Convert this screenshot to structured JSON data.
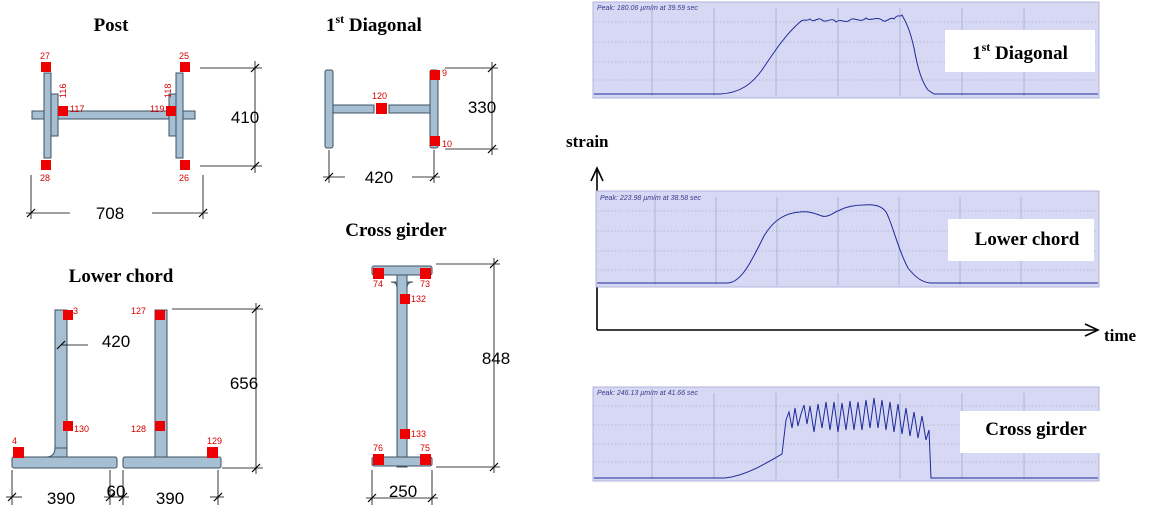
{
  "sections": {
    "post": {
      "title": "Post",
      "gauges": [
        "27",
        "25",
        "116",
        "117",
        "119",
        "118",
        "28",
        "26"
      ],
      "dims": {
        "height": "410",
        "width": "708"
      }
    },
    "diagonal": {
      "title_main": "1",
      "title_sup": "st",
      "title_rest": " Diagonal",
      "gauges": [
        "9",
        "120",
        "10"
      ],
      "dims": {
        "height": "330",
        "width": "420"
      }
    },
    "lower_chord": {
      "title": "Lower chord",
      "gauges": [
        "3",
        "127",
        "130",
        "128",
        "4",
        "129"
      ],
      "dims": {
        "gap": "420",
        "height": "656",
        "left_width": "390",
        "spacing": "60",
        "right_width": "390"
      }
    },
    "cross_girder": {
      "title": "Cross girder",
      "gauges": [
        "74",
        "73",
        "132",
        "133",
        "76",
        "75"
      ],
      "dims": {
        "height": "848",
        "width": "250"
      }
    }
  },
  "axes": {
    "y_label": "strain",
    "x_label": "time"
  },
  "panels": [
    {
      "header": "Peak: 180.06 µm/m at 39.59 sec",
      "label_main": "1",
      "label_sup": "st",
      "label_rest": " Diagonal",
      "peak_value": 180.06,
      "peak_time": 39.59
    },
    {
      "header": "Peak: 223.98 µm/m at 38.58 sec",
      "label": "Lower chord",
      "peak_value": 223.98,
      "peak_time": 38.58
    },
    {
      "header": "Peak: 246.13 µm/m at 41.66 sec",
      "label": "Cross girder",
      "peak_value": 246.13,
      "peak_time": 41.66
    }
  ],
  "colors": {
    "gauge": "#ee0000",
    "steel": "#a7bfd3",
    "panel": "#d6d8f4",
    "trace": "#1f2a99"
  }
}
